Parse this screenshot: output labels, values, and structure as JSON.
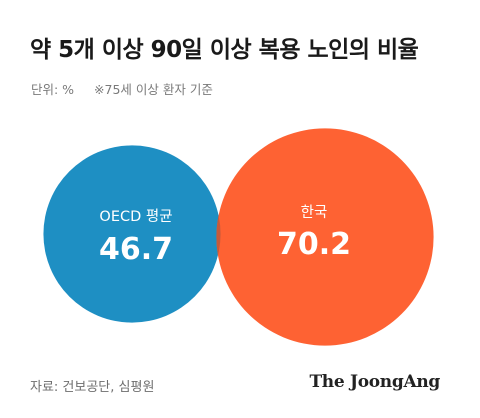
{
  "header": {
    "title": "약 5개 이상 90일 이상 복용 노인의 비율",
    "unit": "단위: %",
    "note": "※75세 이상 환자 기준"
  },
  "footer": {
    "source": "자료: 건보공단, 심평원",
    "brand": "The JoongAng"
  },
  "chart_data": {
    "type": "venn",
    "series": [
      {
        "name": "OECD 평균",
        "value": 46.7,
        "color": "#1e8fc3"
      },
      {
        "name": "한국",
        "value": 70.2,
        "color": "#fe6233"
      }
    ],
    "overlap_color": "#c65a3a",
    "unit": "%"
  }
}
